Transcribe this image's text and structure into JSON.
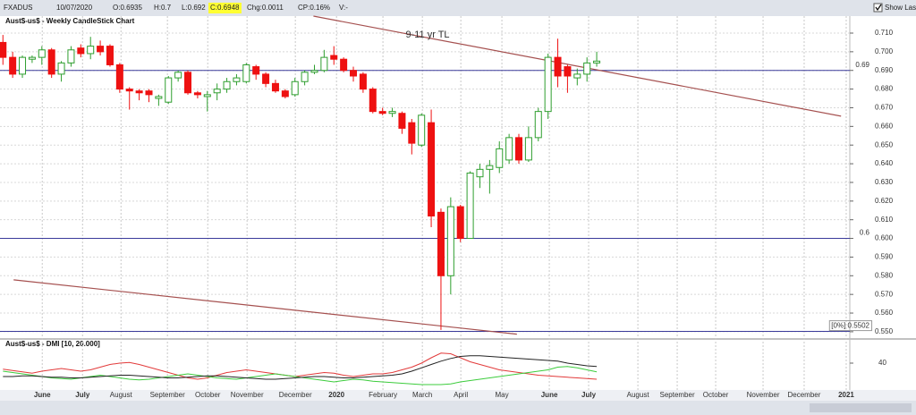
{
  "toolbar": {
    "symbol": "FXADUS",
    "date": "10/07/2020",
    "open": "O:0.6935",
    "high": "H:0.7",
    "low": "L:0.692",
    "close": "C:0.6948",
    "change": "Chg:0.0011",
    "change_percent": "CP:0.16%",
    "volume": "V:-",
    "show_last": "Show Last"
  },
  "chart_data": [
    {
      "type": "candlestick",
      "title": "Aust$-us$ - Weekly CandleStick Chart",
      "open": [
        0.705,
        0.697,
        0.688,
        0.696,
        0.697,
        0.701,
        0.688,
        0.694,
        0.702,
        0.699,
        0.703,
        0.703,
        0.693,
        0.68,
        0.679,
        0.679,
        0.675,
        0.673,
        0.686,
        0.689,
        0.678,
        0.676,
        0.678,
        0.68,
        0.684,
        0.684,
        0.692,
        0.688,
        0.683,
        0.679,
        0.677,
        0.684,
        0.689,
        0.69,
        0.698,
        0.696,
        0.69,
        0.688,
        0.68,
        0.668,
        0.667,
        0.667,
        0.662,
        0.65,
        0.662,
        0.614,
        0.58,
        0.617,
        0.6,
        0.633,
        0.637,
        0.638,
        0.642,
        0.654,
        0.642,
        0.654,
        0.668,
        0.697,
        0.692,
        0.686,
        0.688,
        0.694
      ],
      "high": [
        0.709,
        0.7,
        0.698,
        0.698,
        0.703,
        0.702,
        0.695,
        0.703,
        0.704,
        0.708,
        0.706,
        0.704,
        0.694,
        0.681,
        0.68,
        0.68,
        0.677,
        0.687,
        0.69,
        0.69,
        0.679,
        0.679,
        0.683,
        0.686,
        0.688,
        0.694,
        0.693,
        0.689,
        0.685,
        0.68,
        0.686,
        0.69,
        0.693,
        0.701,
        0.703,
        0.697,
        0.692,
        0.689,
        0.681,
        0.67,
        0.67,
        0.668,
        0.664,
        0.667,
        0.669,
        0.616,
        0.622,
        0.618,
        0.636,
        0.64,
        0.642,
        0.652,
        0.656,
        0.656,
        0.66,
        0.67,
        0.699,
        0.707,
        0.693,
        0.691,
        0.697,
        0.7
      ],
      "low": [
        0.693,
        0.686,
        0.686,
        0.694,
        0.693,
        0.686,
        0.684,
        0.692,
        0.697,
        0.696,
        0.698,
        0.692,
        0.678,
        0.669,
        0.674,
        0.673,
        0.671,
        0.672,
        0.684,
        0.677,
        0.675,
        0.668,
        0.674,
        0.678,
        0.682,
        0.683,
        0.685,
        0.681,
        0.678,
        0.675,
        0.676,
        0.682,
        0.688,
        0.689,
        0.693,
        0.689,
        0.684,
        0.678,
        0.667,
        0.666,
        0.665,
        0.656,
        0.645,
        0.649,
        0.606,
        0.551,
        0.57,
        0.598,
        0.6,
        0.627,
        0.624,
        0.635,
        0.64,
        0.64,
        0.641,
        0.652,
        0.664,
        0.681,
        0.678,
        0.682,
        0.684,
        0.692
      ],
      "close": [
        0.697,
        0.688,
        0.697,
        0.697,
        0.701,
        0.688,
        0.694,
        0.701,
        0.699,
        0.703,
        0.7,
        0.693,
        0.68,
        0.679,
        0.678,
        0.677,
        0.676,
        0.686,
        0.689,
        0.678,
        0.677,
        0.677,
        0.68,
        0.684,
        0.686,
        0.693,
        0.688,
        0.683,
        0.679,
        0.676,
        0.684,
        0.689,
        0.69,
        0.697,
        0.696,
        0.69,
        0.687,
        0.68,
        0.668,
        0.667,
        0.668,
        0.659,
        0.651,
        0.666,
        0.612,
        0.58,
        0.617,
        0.6,
        0.635,
        0.637,
        0.639,
        0.648,
        0.654,
        0.642,
        0.654,
        0.668,
        0.697,
        0.687,
        0.687,
        0.688,
        0.694,
        0.695
      ],
      "up_color": "#2e9e2e",
      "down_color": "#ee1111",
      "xlim": [
        -0.3,
        87
      ],
      "xticks": [
        {
          "value": 4.04,
          "label": "June"
        },
        {
          "value": 8.18,
          "label": "July"
        },
        {
          "value": 12.13,
          "label": "August"
        },
        {
          "value": 16.9,
          "label": "September"
        },
        {
          "value": 21.04,
          "label": "October"
        },
        {
          "value": 25.08,
          "label": "November"
        },
        {
          "value": 30.04,
          "label": "December"
        },
        {
          "value": 34.27,
          "label": "2020"
        },
        {
          "value": 39.04,
          "label": "February"
        },
        {
          "value": 43.09,
          "label": "March"
        },
        {
          "value": 47.04,
          "label": "April"
        },
        {
          "value": 51.26,
          "label": "May"
        },
        {
          "value": 56.13,
          "label": "June"
        },
        {
          "value": 60.17,
          "label": "July"
        },
        {
          "value": 65.23,
          "label": "August"
        },
        {
          "value": 69.27,
          "label": "September"
        },
        {
          "value": 73.22,
          "label": "October"
        },
        {
          "value": 78.09,
          "label": "November"
        },
        {
          "value": 82.31,
          "label": "December"
        },
        {
          "value": 86.63,
          "label": "2021"
        }
      ],
      "ylim": [
        0.5466,
        0.7191
      ],
      "yticks": [
        {
          "value": 0.71,
          "label": "0.710"
        },
        {
          "value": 0.7,
          "label": "0.700"
        },
        {
          "value": 0.69,
          "label": "0.690"
        },
        {
          "value": 0.68,
          "label": "0.680"
        },
        {
          "value": 0.67,
          "label": "0.670"
        },
        {
          "value": 0.66,
          "label": "0.660"
        },
        {
          "value": 0.65,
          "label": "0.650"
        },
        {
          "value": 0.64,
          "label": "0.640"
        },
        {
          "value": 0.63,
          "label": "0.630"
        },
        {
          "value": 0.62,
          "label": "0.620"
        },
        {
          "value": 0.61,
          "label": "0.610"
        },
        {
          "value": 0.6,
          "label": "0.600"
        },
        {
          "value": 0.59,
          "label": "0.590"
        },
        {
          "value": 0.58,
          "label": "0.580"
        },
        {
          "value": 0.57,
          "label": "0.570"
        },
        {
          "value": 0.56,
          "label": "0.560"
        },
        {
          "value": 0.55,
          "label": "0.550"
        }
      ],
      "grid": true,
      "hlines": [
        {
          "value": 0.69,
          "label": "0.69"
        },
        {
          "value": 0.6,
          "label": "0.6"
        },
        {
          "value": 0.5502,
          "label": "[0%] 0.5502"
        }
      ],
      "hline_color": "#3a3a9a",
      "trendlines": [
        {
          "label": "9-11 yr TL",
          "x": [
            31.9,
            86.1
          ],
          "y": [
            0.7191,
            0.6655
          ]
        },
        {
          "x": [
            1.1,
            52.8
          ],
          "y": [
            0.5778,
            0.5487
          ]
        }
      ],
      "trendline_color": "#a5504f"
    },
    {
      "type": "line",
      "title": "Aust$-us$ - DMI [10, 20.000]",
      "xlim": [
        -0.3,
        87
      ],
      "ylim": [
        0,
        60
      ],
      "yticks": [
        40
      ],
      "series": [
        {
          "color": "#e23a3a",
          "values": [
            31,
            29,
            27,
            25,
            28,
            30,
            32,
            30,
            28,
            30,
            34,
            38,
            40,
            41,
            38,
            34,
            30,
            26,
            22,
            18,
            16,
            18,
            22,
            26,
            28,
            30,
            28,
            26,
            24,
            22,
            20,
            22,
            24,
            26,
            25,
            22,
            20,
            22,
            24,
            24,
            26,
            30,
            34,
            40,
            48,
            55,
            54,
            48,
            42,
            38,
            34,
            30,
            28,
            26,
            24,
            22,
            21,
            20,
            19,
            18,
            17,
            16
          ]
        },
        {
          "color": "#3ccc3c",
          "values": [
            28,
            26,
            24,
            22,
            20,
            18,
            17,
            16,
            18,
            20,
            22,
            20,
            18,
            16,
            15,
            16,
            18,
            20,
            22,
            24,
            22,
            20,
            18,
            17,
            16,
            18,
            20,
            22,
            24,
            22,
            20,
            18,
            16,
            14,
            12,
            14,
            16,
            15,
            13,
            12,
            11,
            10,
            9,
            8,
            8,
            8,
            9,
            12,
            14,
            16,
            18,
            20,
            22,
            24,
            26,
            28,
            30,
            34,
            35,
            33,
            30,
            27
          ]
        },
        {
          "color": "#222222",
          "values": [
            20,
            20,
            21,
            21,
            20,
            19,
            19,
            18,
            18,
            19,
            20,
            21,
            22,
            22,
            21,
            20,
            19,
            18,
            18,
            19,
            20,
            21,
            21,
            20,
            19,
            18,
            17,
            16,
            16,
            17,
            18,
            19,
            20,
            20,
            19,
            18,
            18,
            19,
            20,
            21,
            22,
            24,
            28,
            33,
            38,
            43,
            47,
            50,
            51,
            51,
            50,
            49,
            48,
            47,
            46,
            45,
            44,
            43,
            40,
            38,
            36,
            35
          ]
        }
      ]
    }
  ]
}
